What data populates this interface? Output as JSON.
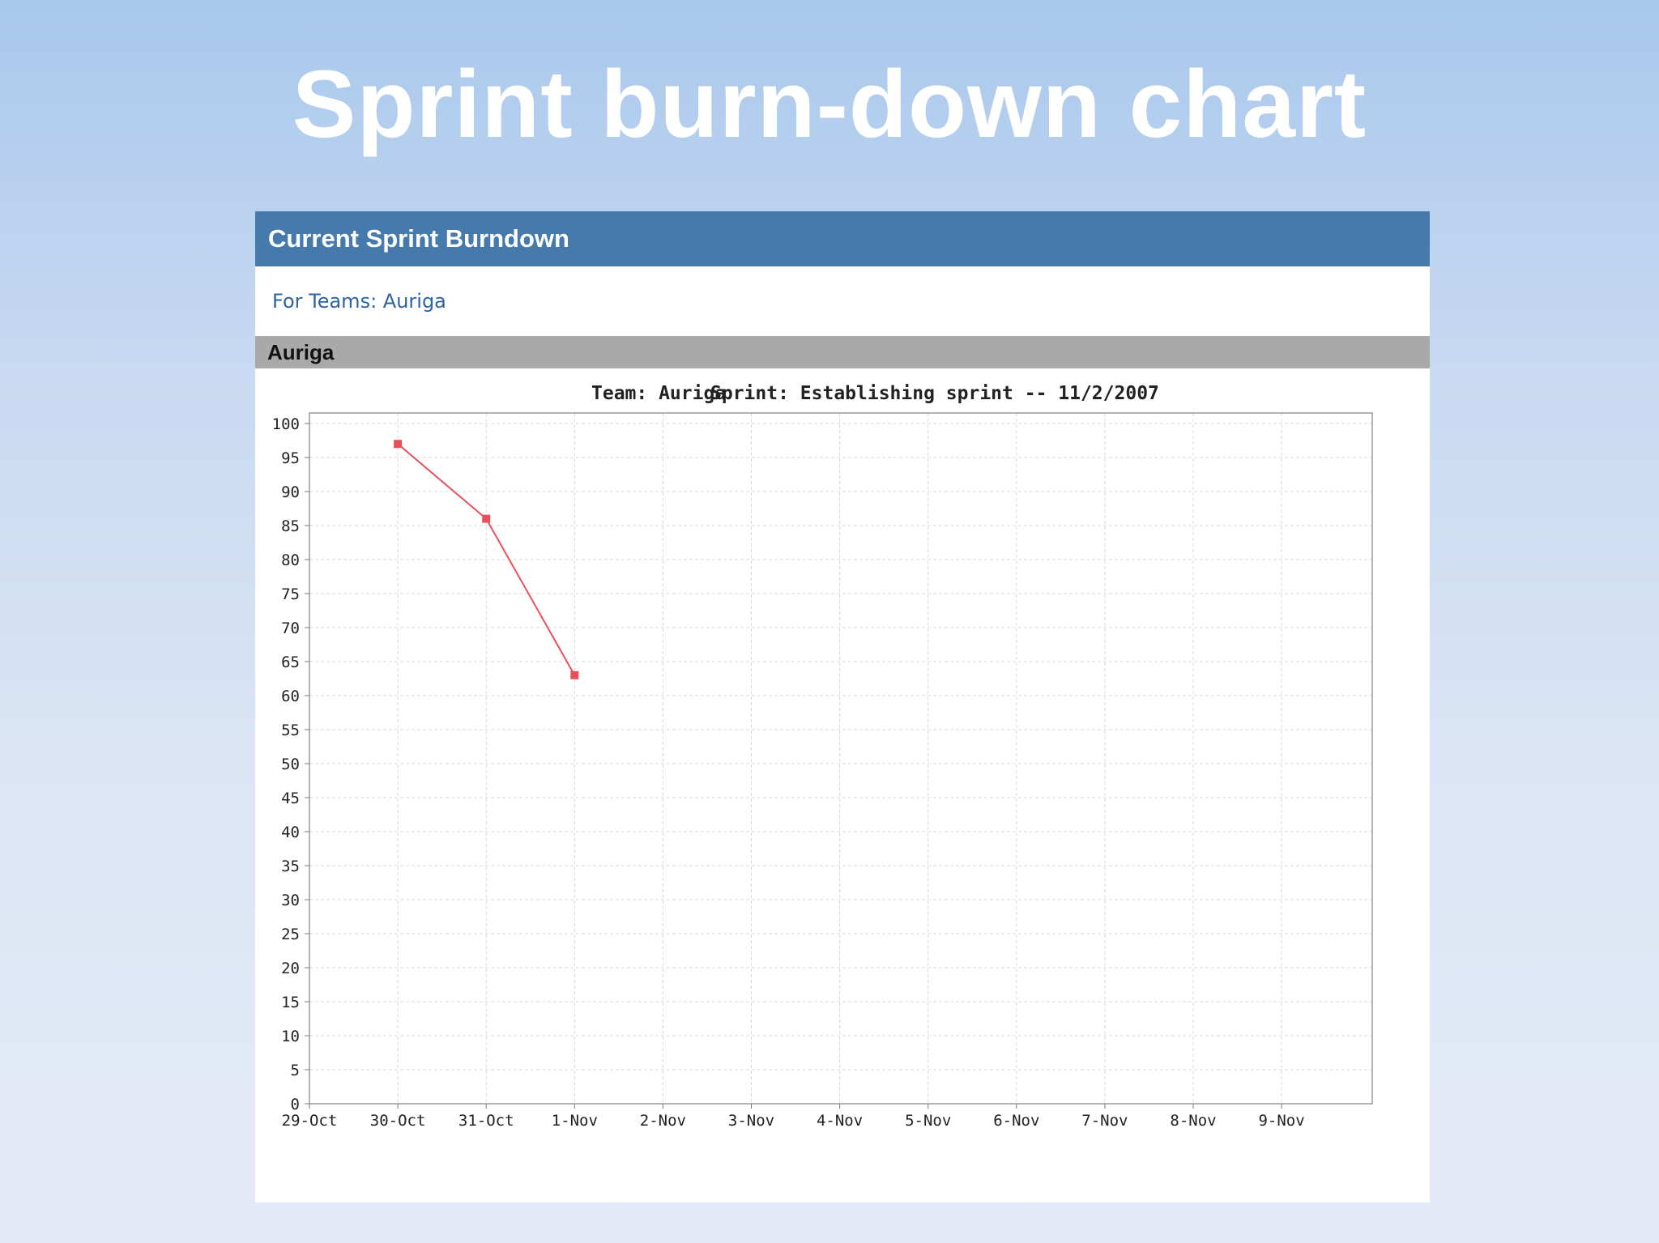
{
  "slide": {
    "title": "Sprint burn-down chart"
  },
  "panel": {
    "header": "Current Sprint Burndown",
    "teams_line": "For Teams: Auriga",
    "team_bar": "Auriga"
  },
  "chart_data": {
    "type": "line",
    "title_team": "Team: Auriga",
    "title_sprint": "Sprint: Establishing sprint -- 11/2/2007",
    "categories": [
      "29-Oct",
      "30-Oct",
      "31-Oct",
      "1-Nov",
      "2-Nov",
      "3-Nov",
      "4-Nov",
      "5-Nov",
      "6-Nov",
      "7-Nov",
      "8-Nov",
      "9-Nov"
    ],
    "series": [
      {
        "points": [
          {
            "x": "30-Oct",
            "y": 97
          },
          {
            "x": "31-Oct",
            "y": 86
          },
          {
            "x": "1-Nov",
            "y": 63
          }
        ],
        "color": "#e8505b"
      }
    ],
    "ylim": [
      0,
      100
    ],
    "yticks": [
      0,
      5,
      10,
      15,
      20,
      25,
      30,
      35,
      40,
      45,
      50,
      55,
      60,
      65,
      70,
      75,
      80,
      85,
      90,
      95,
      100
    ],
    "grid": true,
    "grid_color": "#d8d8d8"
  }
}
